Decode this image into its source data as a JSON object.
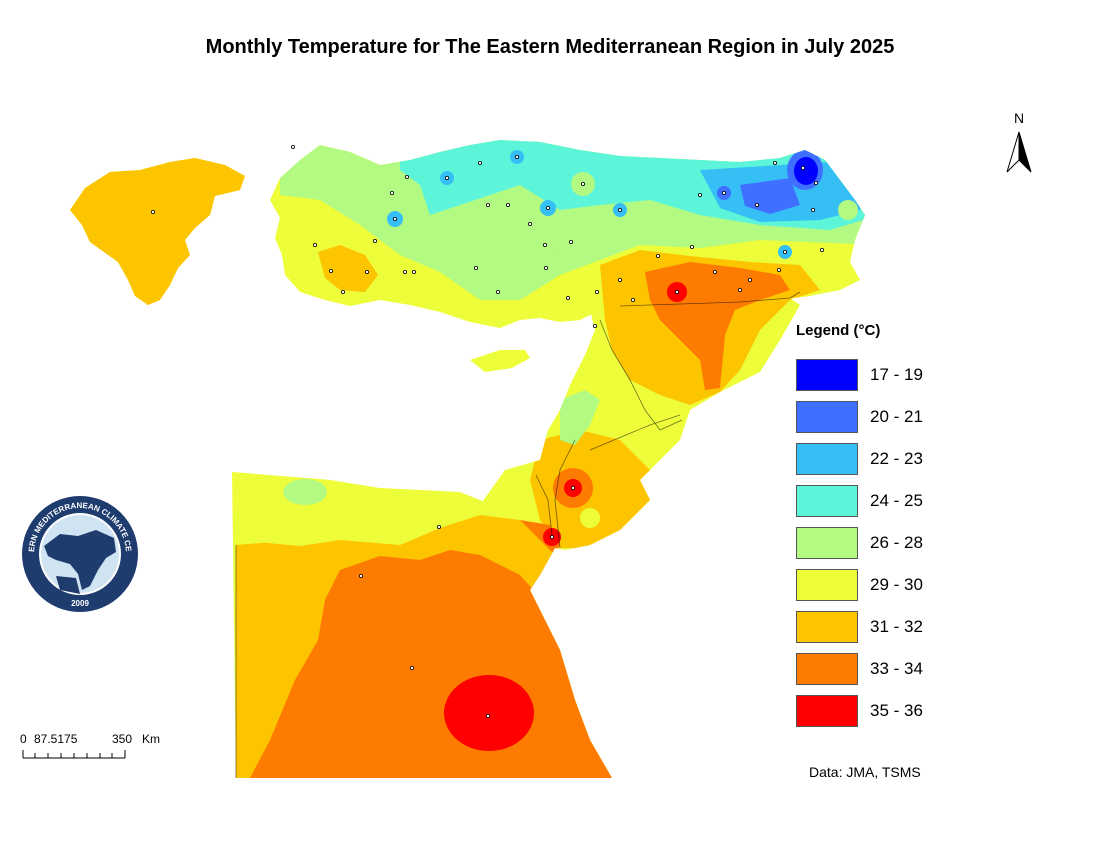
{
  "title": "Monthly Temperature  for The Eastern Mediterranean Region in July 2025",
  "north_arrow": {
    "label": "N",
    "icon": "north-arrow-icon"
  },
  "legend": {
    "title": "Legend (°C)",
    "items": [
      {
        "label": "17 - 19",
        "color": "#0000FF"
      },
      {
        "label": "20 - 21",
        "color": "#3F6FFF"
      },
      {
        "label": "22 - 23",
        "color": "#35BFF5"
      },
      {
        "label": "24 - 25",
        "color": "#5CF5DA"
      },
      {
        "label": "26 - 28",
        "color": "#B2FA82"
      },
      {
        "label": "29 - 30",
        "color": "#EDFD3A"
      },
      {
        "label": "31 - 32",
        "color": "#FDC400"
      },
      {
        "label": "33 - 34",
        "color": "#FD7B00"
      },
      {
        "label": "35 - 36",
        "color": "#FE0000"
      }
    ]
  },
  "logo": {
    "text": "EASTERN MEDITERRANEAN CLIMATE CENTRE",
    "year": "2009",
    "colors": {
      "navy": "#1E3C6E",
      "sea": "#CFE3F2",
      "land": "#1E3C6E"
    }
  },
  "scale_bar": {
    "labels": [
      "0",
      "87.5175",
      "350",
      "Km"
    ]
  },
  "credit": "Data: JMA, TSMS"
}
